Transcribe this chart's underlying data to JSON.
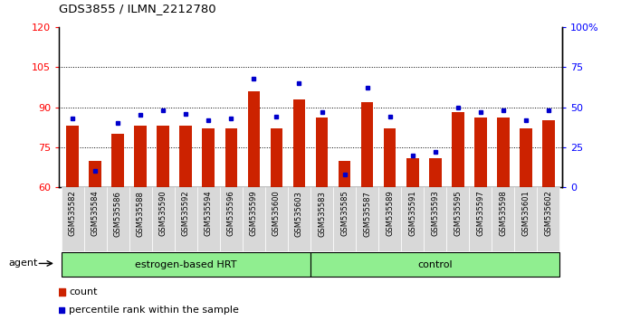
{
  "title": "GDS3855 / ILMN_2212780",
  "samples": [
    "GSM535582",
    "GSM535584",
    "GSM535586",
    "GSM535588",
    "GSM535590",
    "GSM535592",
    "GSM535594",
    "GSM535596",
    "GSM535599",
    "GSM535600",
    "GSM535603",
    "GSM535583",
    "GSM535585",
    "GSM535587",
    "GSM535589",
    "GSM535591",
    "GSM535593",
    "GSM535595",
    "GSM535597",
    "GSM535598",
    "GSM535601",
    "GSM535602"
  ],
  "red_values": [
    83,
    70,
    80,
    83,
    83,
    83,
    82,
    82,
    96,
    82,
    93,
    86,
    70,
    92,
    82,
    71,
    71,
    88,
    86,
    86,
    82,
    85
  ],
  "blue_values": [
    43,
    10,
    40,
    45,
    48,
    46,
    42,
    43,
    68,
    44,
    65,
    47,
    8,
    62,
    44,
    20,
    22,
    50,
    47,
    48,
    42,
    48
  ],
  "group_labels": [
    "estrogen-based HRT",
    "control"
  ],
  "group_split": 11,
  "bar_color": "#CC2200",
  "marker_color": "#0000CC",
  "ylim_left": [
    60,
    120
  ],
  "ylim_right": [
    0,
    100
  ],
  "yticks_left": [
    60,
    75,
    90,
    105,
    120
  ],
  "yticks_right": [
    0,
    25,
    50,
    75,
    100
  ],
  "ytick_labels_right": [
    "0",
    "25",
    "50",
    "75",
    "100%"
  ],
  "grid_values": [
    75,
    90,
    105
  ],
  "agent_label": "agent",
  "legend_count_label": "count",
  "legend_pct_label": "percentile rank within the sample",
  "bar_width": 0.55,
  "group_bg_color": "#90EE90",
  "label_bg_color": "#D8D8D8",
  "fig_width": 6.86,
  "fig_height": 3.54
}
